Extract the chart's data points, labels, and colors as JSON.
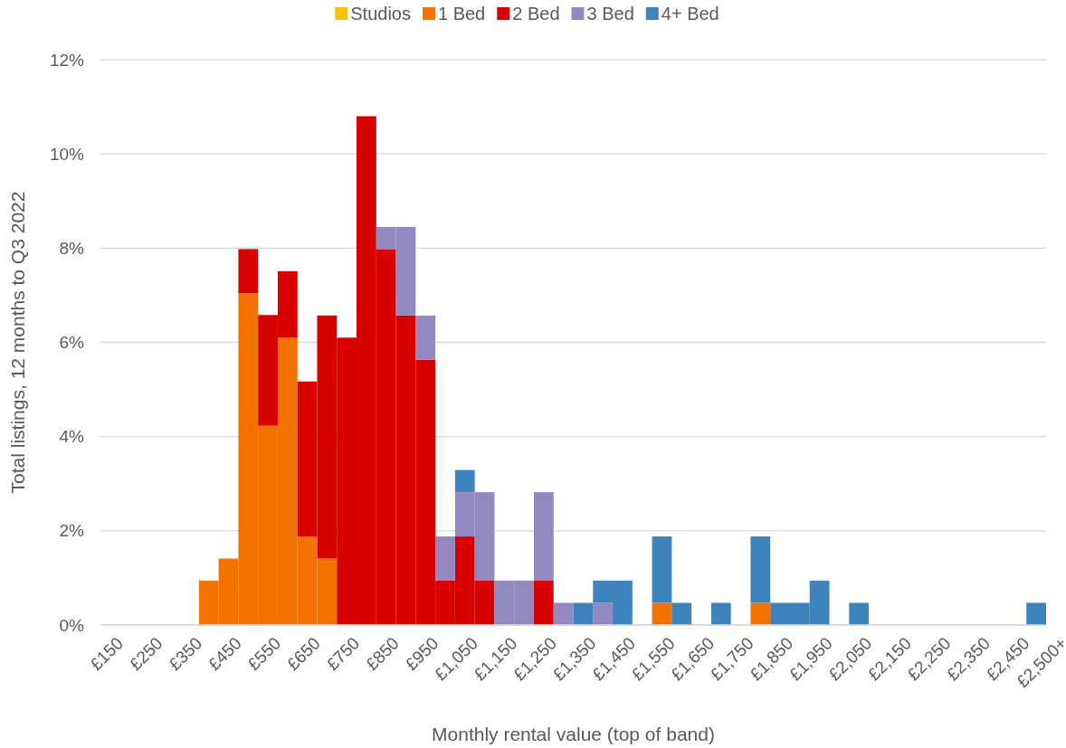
{
  "chart_data": {
    "type": "bar",
    "stacked": true,
    "xlabel": "Monthly rental value (top of band)",
    "ylabel": "Total listings, 12 months to Q3 2022",
    "categories": [
      "£150",
      null,
      "£250",
      null,
      "£350",
      null,
      "£450",
      null,
      "£550",
      null,
      "£650",
      null,
      "£750",
      null,
      "£850",
      null,
      "£950",
      null,
      "£1,050",
      null,
      "£1,150",
      null,
      "£1,250",
      null,
      "£1,350",
      null,
      "£1,450",
      null,
      "£1,550",
      null,
      "£1,650",
      null,
      "£1,750",
      null,
      "£1,850",
      null,
      "£1,950",
      null,
      "£2,050",
      null,
      "£2,150",
      null,
      "£2,250",
      null,
      "£2,350",
      null,
      "£2,450",
      "£2,500+"
    ],
    "series": [
      {
        "name": "Studios",
        "color": "#ffc000",
        "values": [
          null,
          null,
          null,
          null,
          null,
          null,
          null,
          null,
          null,
          null,
          null,
          null,
          null,
          null,
          null,
          null,
          null,
          null,
          null,
          null,
          null,
          null,
          null,
          null,
          null,
          null,
          null,
          null,
          null,
          null,
          null,
          null,
          null,
          null,
          null,
          null,
          null,
          null,
          null,
          null,
          null,
          null,
          null,
          null,
          null,
          null,
          null,
          null
        ]
      },
      {
        "name": "1 Bed",
        "color": "#f47300",
        "values": [
          null,
          null,
          null,
          null,
          null,
          0.94,
          1.41,
          7.04,
          4.23,
          6.1,
          1.88,
          1.41,
          null,
          null,
          null,
          null,
          null,
          null,
          null,
          null,
          null,
          null,
          null,
          null,
          null,
          null,
          null,
          null,
          0.47,
          null,
          null,
          null,
          null,
          0.47,
          null,
          null,
          null,
          null,
          null,
          null,
          null,
          null,
          null,
          null,
          null,
          null,
          null,
          null
        ]
      },
      {
        "name": "2 Bed",
        "color": "#d90000",
        "values": [
          null,
          null,
          null,
          null,
          null,
          null,
          null,
          0.94,
          2.35,
          1.41,
          3.29,
          5.16,
          6.1,
          10.8,
          7.98,
          6.57,
          5.63,
          0.94,
          1.88,
          0.94,
          null,
          null,
          0.94,
          null,
          null,
          null,
          null,
          null,
          null,
          null,
          null,
          null,
          null,
          null,
          null,
          null,
          null,
          null,
          null,
          null,
          null,
          null,
          null,
          null,
          null,
          null,
          null,
          null
        ]
      },
      {
        "name": "3 Bed",
        "color": "#9389c1",
        "values": [
          null,
          null,
          null,
          null,
          null,
          null,
          null,
          null,
          null,
          null,
          null,
          null,
          null,
          null,
          0.47,
          1.88,
          0.94,
          0.94,
          0.94,
          1.88,
          0.94,
          0.94,
          1.88,
          0.47,
          null,
          0.47,
          null,
          null,
          null,
          null,
          null,
          null,
          null,
          null,
          null,
          null,
          null,
          null,
          null,
          null,
          null,
          null,
          null,
          null,
          null,
          null,
          null,
          null
        ]
      },
      {
        "name": "4+ Bed",
        "color": "#3d84bf",
        "values": [
          null,
          null,
          null,
          null,
          null,
          null,
          null,
          null,
          null,
          null,
          null,
          null,
          null,
          null,
          null,
          null,
          null,
          null,
          0.47,
          null,
          null,
          null,
          null,
          null,
          0.47,
          0.47,
          0.94,
          null,
          1.41,
          0.47,
          null,
          0.47,
          null,
          1.41,
          0.47,
          0.47,
          0.94,
          null,
          0.47,
          null,
          null,
          null,
          null,
          null,
          null,
          null,
          null,
          0.47
        ]
      }
    ],
    "ylim": [
      0,
      12
    ],
    "yticks": [
      {
        "value": 0,
        "label": "0%"
      },
      {
        "value": 2,
        "label": "2%"
      },
      {
        "value": 4,
        "label": "4%"
      },
      {
        "value": 6,
        "label": "6%"
      },
      {
        "value": 8,
        "label": "8%"
      },
      {
        "value": 10,
        "label": "10%"
      },
      {
        "value": 12,
        "label": "12%"
      }
    ],
    "grid": "y",
    "legend": "top"
  }
}
